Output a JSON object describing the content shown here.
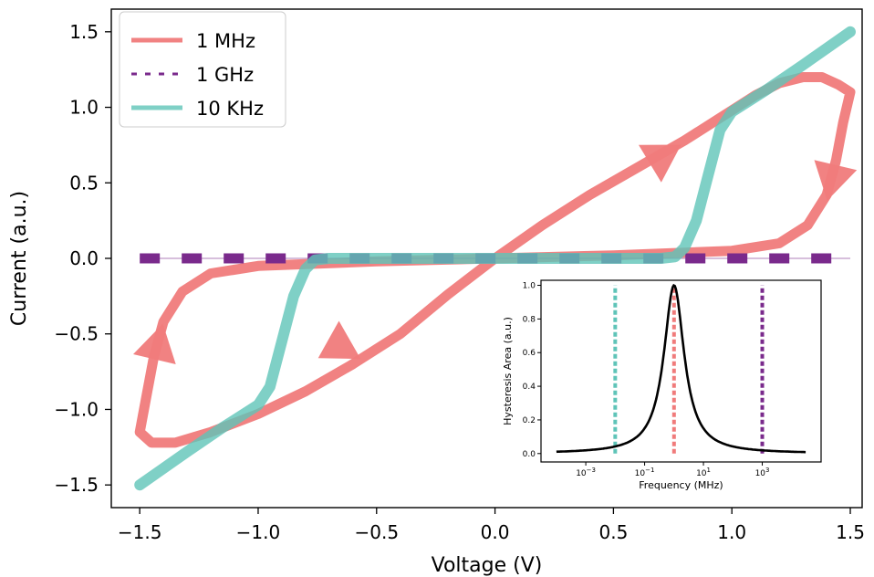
{
  "chart_data": [
    {
      "type": "line",
      "title": "",
      "xlabel": "Voltage (V)",
      "ylabel": "Current (a.u.)",
      "xlim": [
        -1.62,
        1.55
      ],
      "ylim": [
        -1.65,
        1.65
      ],
      "xticks": [
        -1.5,
        -1.0,
        -0.5,
        0.0,
        0.5,
        1.0,
        1.5
      ],
      "xtick_labels": [
        "−1.5",
        "−1.0",
        "−0.5",
        "0.0",
        "0.5",
        "1.0",
        "1.5"
      ],
      "yticks": [
        -1.5,
        -1.0,
        -0.5,
        0.0,
        0.5,
        1.0,
        1.5
      ],
      "ytick_labels": [
        "−1.5",
        "−1.0",
        "−0.5",
        "0.0",
        "0.5",
        "1.0",
        "1.5"
      ],
      "grid": false,
      "legend_position": "top-left",
      "series": [
        {
          "name": "1 MHz",
          "color": "#f07b7b",
          "style": "solid",
          "points": [
            [
              -1.5,
              -1.15
            ],
            [
              -1.45,
              -1.22
            ],
            [
              -1.35,
              -1.22
            ],
            [
              -1.2,
              -1.15
            ],
            [
              -1.0,
              -1.03
            ],
            [
              -0.8,
              -0.88
            ],
            [
              -0.6,
              -0.7
            ],
            [
              -0.4,
              -0.5
            ],
            [
              -0.2,
              -0.24
            ],
            [
              0.0,
              0.0
            ],
            [
              0.2,
              0.22
            ],
            [
              0.4,
              0.42
            ],
            [
              0.6,
              0.6
            ],
            [
              0.8,
              0.78
            ],
            [
              1.0,
              0.98
            ],
            [
              1.1,
              1.08
            ],
            [
              1.2,
              1.16
            ],
            [
              1.3,
              1.2
            ],
            [
              1.38,
              1.2
            ],
            [
              1.45,
              1.15
            ],
            [
              1.5,
              1.1
            ],
            [
              1.47,
              0.9
            ],
            [
              1.44,
              0.65
            ],
            [
              1.4,
              0.42
            ],
            [
              1.32,
              0.22
            ],
            [
              1.2,
              0.1
            ],
            [
              1.0,
              0.05
            ],
            [
              0.5,
              0.02
            ],
            [
              0.0,
              0.0
            ],
            [
              -0.5,
              -0.02
            ],
            [
              -1.0,
              -0.05
            ],
            [
              -1.2,
              -0.1
            ],
            [
              -1.32,
              -0.22
            ],
            [
              -1.4,
              -0.42
            ],
            [
              -1.44,
              -0.65
            ],
            [
              -1.47,
              -0.9
            ],
            [
              -1.5,
              -1.15
            ]
          ]
        },
        {
          "name": "1 GHz",
          "color": "#7a2a8c",
          "style": "dashed",
          "points": [
            [
              -1.5,
              0.0
            ],
            [
              1.5,
              0.0
            ]
          ]
        },
        {
          "name": "10 KHz",
          "color": "#5fc4b8",
          "style": "solid",
          "points": [
            [
              -1.5,
              -1.5
            ],
            [
              -1.3,
              -1.28
            ],
            [
              -1.15,
              -1.12
            ],
            [
              -1.0,
              -0.97
            ],
            [
              -0.95,
              -0.85
            ],
            [
              -0.9,
              -0.55
            ],
            [
              -0.85,
              -0.25
            ],
            [
              -0.8,
              -0.07
            ],
            [
              -0.76,
              -0.01
            ],
            [
              -0.7,
              0.0
            ],
            [
              0.0,
              0.0
            ],
            [
              0.7,
              0.0
            ],
            [
              0.76,
              0.01
            ],
            [
              0.8,
              0.07
            ],
            [
              0.85,
              0.25
            ],
            [
              0.9,
              0.55
            ],
            [
              0.95,
              0.85
            ],
            [
              1.0,
              0.97
            ],
            [
              1.15,
              1.12
            ],
            [
              1.3,
              1.28
            ],
            [
              1.5,
              1.5
            ]
          ]
        }
      ]
    },
    {
      "type": "line",
      "title": "",
      "xlabel": "Frequency (MHz)",
      "ylabel": "Hysteresis Area (a.u.)",
      "xscale": "log",
      "xlim": [
        3e-05,
        100000
      ],
      "ylim": [
        -0.05,
        1.03
      ],
      "xticks": [
        0.001,
        0.1,
        10,
        1000
      ],
      "xtick_exponents": [
        "−3",
        "−1",
        "1",
        "3"
      ],
      "xtick_base": "10",
      "yticks": [
        0.0,
        0.2,
        0.4,
        0.6,
        0.8,
        1.0
      ],
      "ytick_labels": [
        "0.0",
        "0.2",
        "0.4",
        "0.6",
        "0.8",
        "1.0"
      ],
      "peak_frequency": 1,
      "curve_width_decades": 0.42,
      "curve_range": [
        0.0001,
        30000
      ],
      "markers": [
        {
          "frequency": 0.01,
          "color": "#5fc4b8"
        },
        {
          "frequency": 1,
          "color": "#f07b7b"
        },
        {
          "frequency": 1000,
          "color": "#7a2a8c"
        }
      ],
      "curve_color": "#000000"
    }
  ]
}
